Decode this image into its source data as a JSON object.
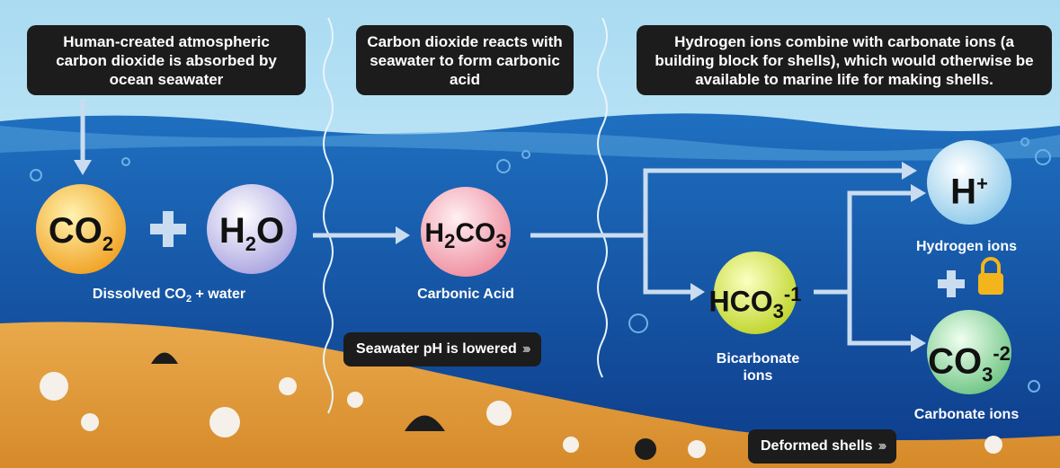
{
  "boxes": [
    "Human-created atmospheric carbon dioxide is absorbed by ocean seawater",
    "Carbon dioxide reacts with seawater to form carbonic acid",
    "Hydrogen ions combine with carbonate ions (a building block for shells), which would otherwise be available to marine life for making shells."
  ],
  "molecules": [
    {
      "formula": [
        {
          "text": "CO"
        },
        {
          "sub": "2"
        }
      ]
    },
    {
      "formula": [
        {
          "text": "H"
        },
        {
          "sub": "2"
        },
        {
          "text": "O"
        }
      ]
    },
    {
      "formula": [
        {
          "text": "H"
        },
        {
          "sub": "2"
        },
        {
          "text": "CO"
        },
        {
          "sub": "3"
        }
      ]
    },
    {
      "formula": [
        {
          "text": "HCO"
        },
        {
          "sub": "3"
        },
        {
          "sup": "-1"
        }
      ]
    },
    {
      "formula": [
        {
          "text": "H"
        },
        {
          "sup": "+"
        }
      ]
    },
    {
      "formula": [
        {
          "text": "CO"
        },
        {
          "sub": "3"
        },
        {
          "sup": "-2"
        }
      ]
    }
  ],
  "captions": [
    [
      {
        "text": "Dissolved CO"
      },
      {
        "sub": "2"
      },
      {
        "text": " + water"
      }
    ],
    [
      {
        "text": "Carbonic Acid"
      }
    ],
    [
      {
        "text": "Bicarbonate ions"
      }
    ],
    [
      {
        "text": "Hydrogen ions"
      }
    ],
    [
      {
        "text": "Carbonate ions"
      }
    ]
  ],
  "badges": [
    "Seawater pH is lowered",
    "Deformed shells"
  ]
}
